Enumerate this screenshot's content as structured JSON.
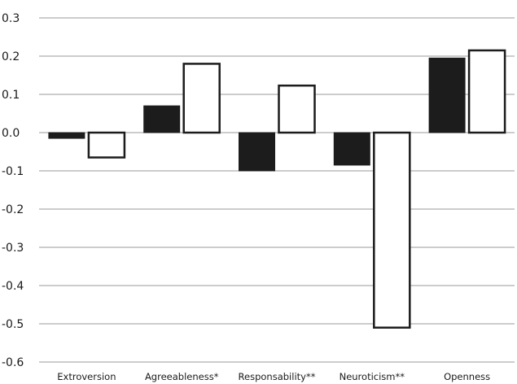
{
  "chart_data": {
    "type": "bar",
    "title": "",
    "xlabel": "",
    "ylabel": "",
    "categories": [
      "Extroversion",
      "Agreeableness*",
      "Responsability**",
      "Neuroticism**",
      "Openness"
    ],
    "series": [
      {
        "values": [
          -0.015,
          0.07,
          -0.1,
          -0.085,
          0.195
        ],
        "color": "#1c1c1c"
      },
      {
        "values": [
          -0.065,
          0.18,
          0.123,
          -0.51,
          0.215
        ],
        "color": "#ffffff"
      }
    ],
    "ylim": [
      -0.6,
      0.3
    ],
    "yticks": [
      "0.3",
      "0.2",
      "0.1",
      "0.0",
      "-0.1",
      "-0.2",
      "-0.3",
      "-0.4",
      "-0.5",
      "-0.6"
    ],
    "ytick_values": [
      0.3,
      0.2,
      0.1,
      0.0,
      -0.1,
      -0.2,
      -0.3,
      -0.4,
      -0.5,
      -0.6
    ],
    "grid": true,
    "legend": "none"
  }
}
